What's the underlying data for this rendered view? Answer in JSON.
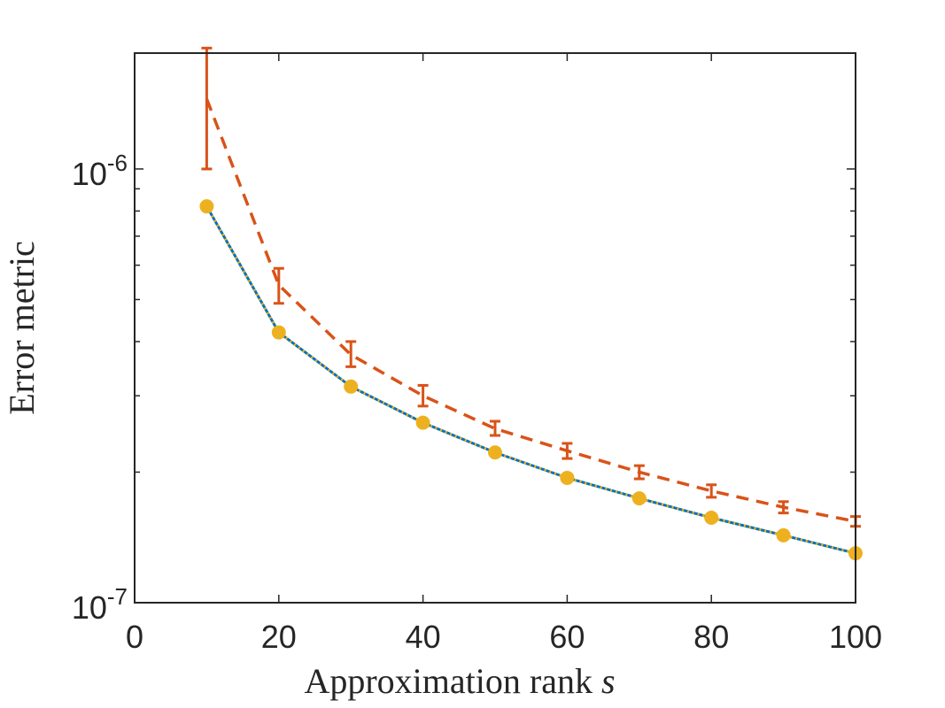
{
  "chart_data": {
    "type": "line",
    "xlabel": "Approximation rank ",
    "xlabel_var": "s",
    "ylabel": "Error metric",
    "xlim": [
      0,
      100
    ],
    "ylim": [
      1e-07,
      1.85e-06
    ],
    "yscale": "log",
    "xticks": [
      0,
      20,
      40,
      60,
      80,
      100
    ],
    "x_tick_labels": [
      "0",
      "20",
      "40",
      "60",
      "80",
      "100"
    ],
    "y_tick_labels": [
      {
        "base": "10",
        "exp": "-7",
        "value": 1e-07
      },
      {
        "base": "10",
        "exp": "-6",
        "value": 1e-06
      }
    ],
    "grid": false,
    "x": [
      10,
      20,
      30,
      40,
      50,
      60,
      70,
      80,
      90,
      100
    ],
    "series": [
      {
        "style": "solid",
        "color": "#0072BD",
        "values": [
          8.2e-07,
          4.2e-07,
          3.15e-07,
          2.6e-07,
          2.22e-07,
          1.94e-07,
          1.74e-07,
          1.57e-07,
          1.43e-07,
          1.3e-07
        ]
      },
      {
        "style": "dashed",
        "color": "#D95319",
        "values": [
          1.45e-06,
          5.4e-07,
          3.73e-07,
          3e-07,
          2.52e-07,
          2.24e-07,
          2e-07,
          1.81e-07,
          1.66e-07,
          1.54e-07
        ],
        "error_low": [
          1e-06,
          4.9e-07,
          3.5e-07,
          2.84e-07,
          2.43e-07,
          2.15e-07,
          1.93e-07,
          1.75e-07,
          1.61e-07,
          1.5e-07
        ],
        "error_high": [
          1.9e-06,
          5.9e-07,
          4e-07,
          3.17e-07,
          2.62e-07,
          2.33e-07,
          2.07e-07,
          1.87e-07,
          1.71e-07,
          1.58e-07
        ]
      },
      {
        "style": "dotted",
        "marker": "circle",
        "color": "#EDB120",
        "values": [
          8.2e-07,
          4.2e-07,
          3.15e-07,
          2.6e-07,
          2.22e-07,
          1.94e-07,
          1.74e-07,
          1.57e-07,
          1.43e-07,
          1.3e-07
        ]
      }
    ]
  }
}
